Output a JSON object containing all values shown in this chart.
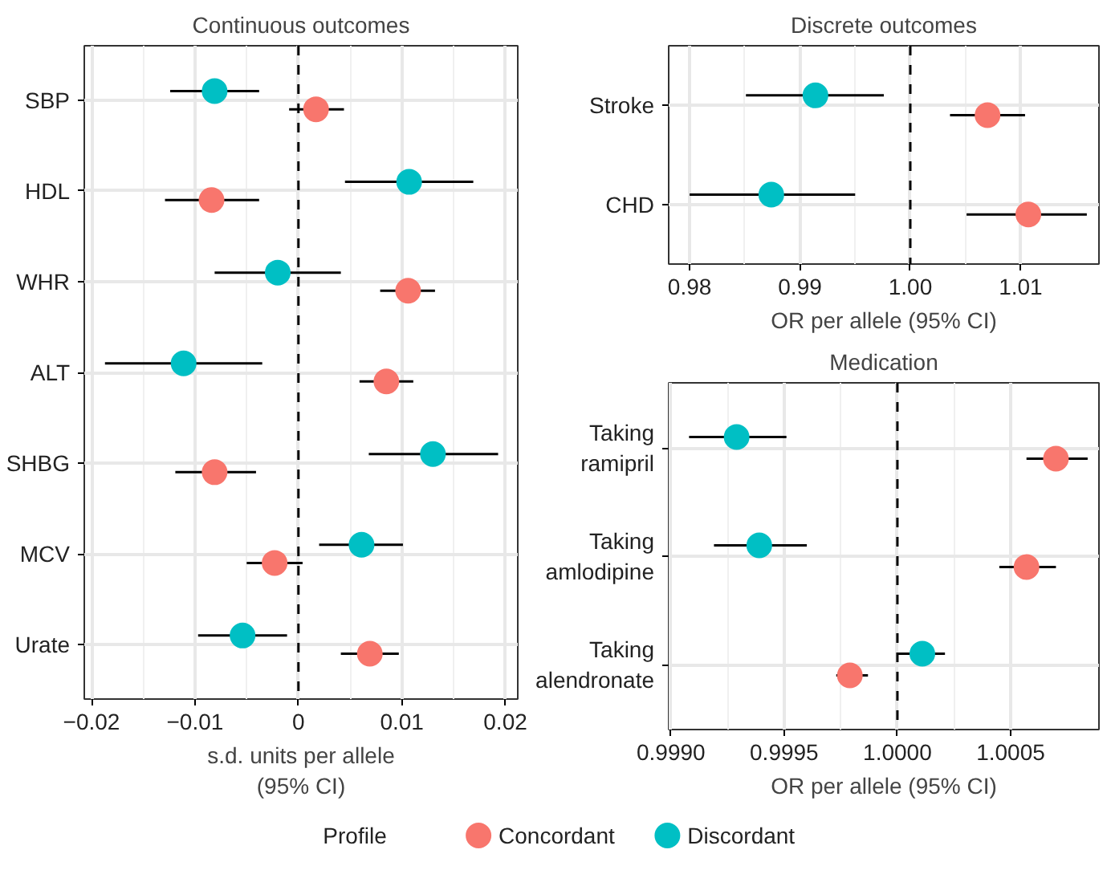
{
  "chart_data": [
    {
      "type": "scatter",
      "orientation": "horizontal",
      "title": "Continuous outcomes",
      "xlabel": "s.d. units per allele (95% CI)",
      "legend": "bottom",
      "legend_title": "Profile",
      "grid": true,
      "marker": "circle",
      "categories": [
        "SBP",
        "HDL",
        "WHR",
        "ALT",
        "SHBG",
        "MCV",
        "Urate"
      ],
      "xlim": [
        -0.0207,
        0.0212
      ],
      "xticks": [
        {
          "value": -0.02,
          "label": "−0.02"
        },
        {
          "value": -0.01,
          "label": "−0.01"
        },
        0,
        0.01,
        0.02
      ],
      "ref_lines": [
        {
          "axis": "x",
          "value": 0,
          "line_style": "dashed",
          "color": "#000000"
        }
      ],
      "series": [
        {
          "name": "Concordant",
          "color": "#f8766d",
          "values": [
            0.0017,
            -0.0084,
            0.0106,
            0.0085,
            -0.0081,
            -0.0023,
            0.0069
          ],
          "errors": [
            [
              -0.0009,
              0.0044
            ],
            [
              -0.0129,
              -0.0038
            ],
            [
              0.0079,
              0.0132
            ],
            [
              0.0059,
              0.0111
            ],
            [
              -0.0119,
              -0.0041
            ],
            [
              -0.005,
              0.0004
            ],
            [
              0.0041,
              0.0097
            ]
          ]
        },
        {
          "name": "Discordant",
          "color": "#00bfc4",
          "values": [
            -0.0081,
            0.0107,
            -0.002,
            -0.0111,
            0.013,
            0.0061,
            -0.0054
          ],
          "errors": [
            [
              -0.0124,
              -0.0038
            ],
            [
              0.0045,
              0.0169
            ],
            [
              -0.0081,
              0.0041
            ],
            [
              -0.0187,
              -0.0035
            ],
            [
              0.0068,
              0.0193
            ],
            [
              0.002,
              0.0101
            ],
            [
              -0.0097,
              -0.0011
            ]
          ]
        }
      ]
    },
    {
      "type": "scatter",
      "orientation": "horizontal",
      "title": "Discrete outcomes",
      "xlabel": "OR per allele (95% CI)",
      "grid": true,
      "marker": "circle",
      "categories": [
        "Stroke",
        "CHD"
      ],
      "xlim": [
        0.9781,
        1.0171
      ],
      "xticks": [
        0.98,
        0.99,
        {
          "value": 1.0,
          "label": "1.00"
        },
        1.01
      ],
      "ref_lines": [
        {
          "axis": "x",
          "value": 1.0,
          "line_style": "dashed",
          "color": "#000000"
        }
      ],
      "series": [
        {
          "color": "#f8766d",
          "values": [
            1.007,
            1.0107
          ],
          "errors": [
            [
              1.0036,
              1.0104
            ],
            [
              1.0051,
              1.016
            ]
          ]
        },
        {
          "color": "#00bfc4",
          "values": [
            0.9914,
            0.9874
          ],
          "errors": [
            [
              0.9851,
              0.9976
            ],
            [
              0.98,
              0.995
            ]
          ]
        }
      ]
    },
    {
      "type": "scatter",
      "orientation": "horizontal",
      "title": "Medication",
      "xlabel": "OR per allele (95% CI)",
      "grid": true,
      "marker": "circle",
      "categories": [
        "Taking ramipril",
        "Taking amlodipine",
        "Taking alendronate"
      ],
      "xlim": [
        0.99899,
        1.00089
      ],
      "xticks": [
        {
          "value": 0.999,
          "label": "0.9990"
        },
        0.9995,
        {
          "value": 1.0,
          "label": "1.0000"
        },
        1.0005
      ],
      "ref_lines": [
        {
          "axis": "x",
          "value": 1.0,
          "line_style": "dashed",
          "color": "#000000"
        }
      ],
      "series": [
        {
          "color": "#f8766d",
          "values": [
            1.0007,
            1.00057,
            0.99979
          ],
          "errors": [
            [
              1.00057,
              1.00084
            ],
            [
              1.00045,
              1.0007
            ],
            [
              0.99973,
              0.99987
            ]
          ]
        },
        {
          "color": "#00bfc4",
          "values": [
            0.99929,
            0.99939,
            1.00011
          ],
          "errors": [
            [
              0.99908,
              0.99951
            ],
            [
              0.99919,
              0.9996
            ],
            [
              1.0,
              1.00021
            ]
          ]
        }
      ]
    }
  ]
}
